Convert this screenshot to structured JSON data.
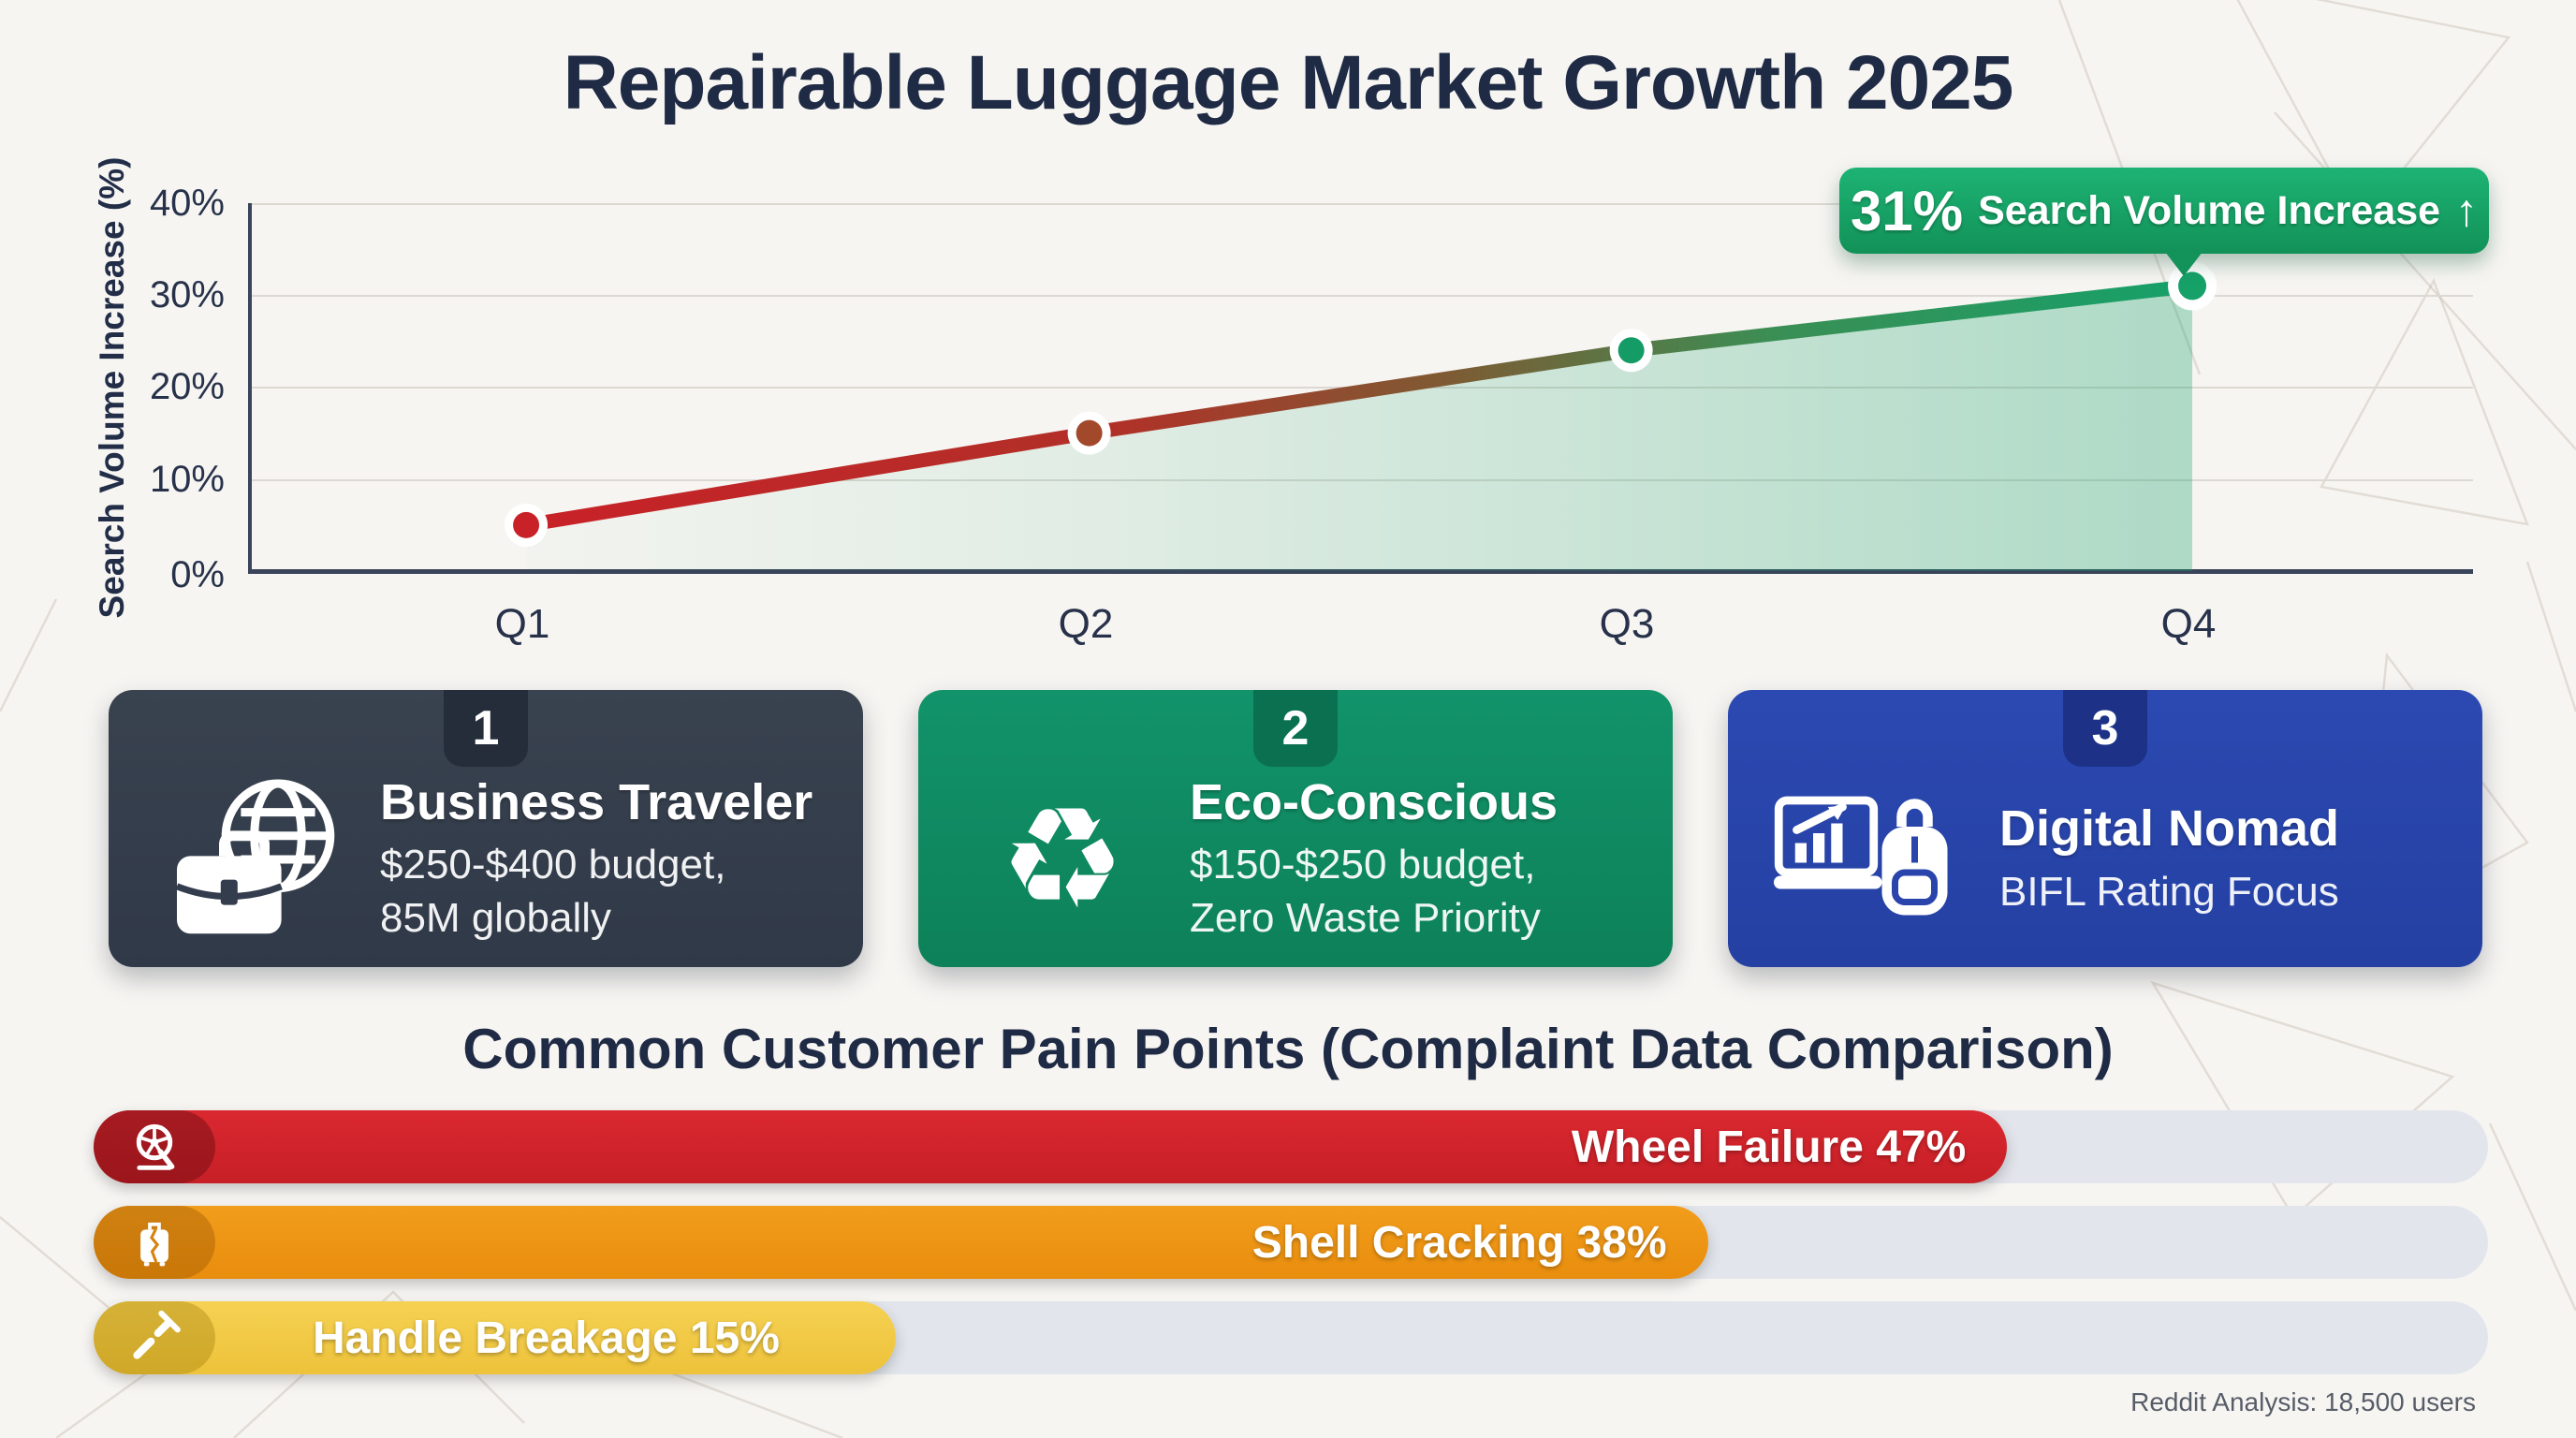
{
  "title": "Repairable Luggage Market Growth 2025",
  "chart_data": {
    "type": "line",
    "x": [
      "Q1",
      "Q2",
      "Q3",
      "Q4"
    ],
    "values": [
      5,
      15,
      24,
      31
    ],
    "ylabel": "Search Volume Increase (%)",
    "yticks": [
      "0%",
      "10%",
      "20%",
      "30%",
      "40%"
    ],
    "ylim": [
      0,
      40
    ],
    "grid": true,
    "legend": false,
    "line_gradient": [
      "#c82127",
      "#16a169"
    ],
    "point_colors": [
      "#c82127",
      "#a2492b",
      "#159c66",
      "#16a169"
    ],
    "annotation": {
      "value": "31%",
      "label": "Search Volume Increase",
      "arrow": "↑",
      "color": "#17a46a"
    }
  },
  "personas": [
    {
      "number": "1",
      "title": "Business Traveler",
      "subtitle": "$250-$400 budget,\n85M globally",
      "icon": "briefcase-globe-icon",
      "bg": "#343d4e",
      "tab_bg": "#252c3a"
    },
    {
      "number": "2",
      "title": "Eco-Conscious",
      "subtitle": "$150-$250 budget,\nZero Waste Priority",
      "icon": "recycle-leaf-icon",
      "bg": "#0e8a62",
      "tab_bg": "#0a7050",
      "icon_glyph": "♻"
    },
    {
      "number": "3",
      "title": "Digital Nomad",
      "subtitle": "BIFL Rating Focus",
      "icon": "laptop-backpack-icon",
      "bg": "#2945ac",
      "tab_bg": "#1d3287"
    }
  ],
  "pain_points": {
    "heading": "Common Customer Pain Points (Complaint Data Comparison)",
    "track_color": "#e2e6ec",
    "bars": [
      {
        "label": "Wheel Failure 47%",
        "value": 47,
        "width_pct": 78.2,
        "color": "#d2232b",
        "icon_bg": "#a81e24",
        "icon": "wheel-icon",
        "label_align": "right"
      },
      {
        "label": "Shell Cracking 38%",
        "value": 38,
        "width_pct": 65.7,
        "color": "#ee9412",
        "icon_bg": "#d8820e",
        "icon": "cracked-suitcase-icon",
        "label_align": "right"
      },
      {
        "label": "Handle Breakage 15%",
        "value": 15,
        "width_pct": 29.2,
        "color": "#f2ca43",
        "icon_bg": "#e2b935",
        "icon": "broken-handle-icon",
        "label_align": "center"
      }
    ]
  },
  "footer": {
    "source": "Reddit Analysis: 18,500 users"
  }
}
